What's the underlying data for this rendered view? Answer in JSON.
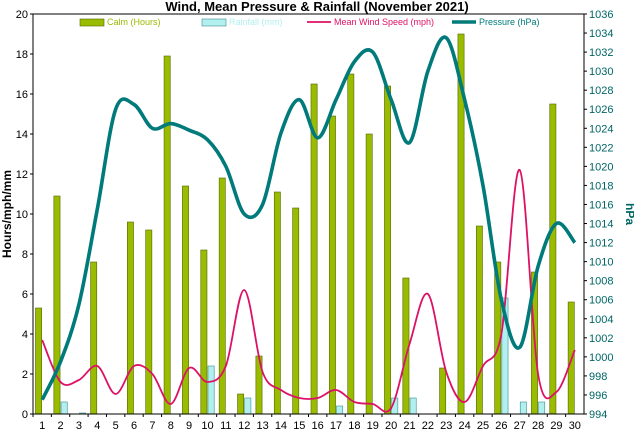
{
  "chart_data": {
    "type": "bar",
    "title": "Wind, Mean Pressure & Rainfall (November 2021)",
    "ylabel": "Hours/mph/mm",
    "y2label": "hPa",
    "ylim": [
      0,
      20
    ],
    "y2lim": [
      994,
      1036
    ],
    "yticks": [
      "0",
      "2",
      "4",
      "6",
      "8",
      "10",
      "12",
      "14",
      "16",
      "18",
      "20"
    ],
    "y2ticks": [
      "994",
      "996",
      "998",
      "1000",
      "1002",
      "1004",
      "1006",
      "1008",
      "1010",
      "1012",
      "1014",
      "1016",
      "1018",
      "1020",
      "1022",
      "1024",
      "1026",
      "1028",
      "1030",
      "1032",
      "1034",
      "1036"
    ],
    "categories": [
      "1",
      "2",
      "3",
      "4",
      "5",
      "6",
      "7",
      "8",
      "9",
      "10",
      "11",
      "12",
      "13",
      "14",
      "15",
      "16",
      "17",
      "18",
      "19",
      "20",
      "21",
      "22",
      "23",
      "24",
      "25",
      "26",
      "27",
      "28",
      "29",
      "30"
    ],
    "grid": false,
    "legend_position": "top",
    "series": [
      {
        "name": "Calm (Hours)",
        "type": "bar",
        "axis": "left",
        "color": "#99bb00",
        "values": [
          5.3,
          10.9,
          0,
          7.6,
          0,
          9.6,
          9.2,
          17.9,
          11.4,
          8.2,
          11.8,
          1.0,
          2.9,
          11.1,
          10.3,
          16.5,
          14.9,
          17.0,
          14.0,
          16.4,
          6.8,
          0,
          2.3,
          19.0,
          9.4,
          7.6,
          0,
          7.1,
          15.5,
          5.6
        ]
      },
      {
        "name": "Rainfall (mm)",
        "type": "bar",
        "axis": "left",
        "color": "#b2f0f0",
        "values": [
          0,
          0.6,
          0.05,
          0,
          0,
          0,
          0,
          0,
          0,
          2.4,
          0,
          0.8,
          0,
          0,
          0,
          0,
          0.4,
          0,
          0,
          0.8,
          0.8,
          0,
          0,
          0,
          0,
          5.8,
          0.6,
          0.6,
          0,
          0
        ]
      },
      {
        "name": "Mean Wind Speed (mph)",
        "type": "line",
        "axis": "left",
        "color": "#dd1166",
        "values": [
          3.7,
          1.6,
          1.7,
          2.4,
          1.0,
          2.4,
          2.0,
          0.5,
          2.3,
          1.6,
          2.4,
          6.2,
          2.1,
          1.2,
          0.8,
          0.8,
          1.2,
          0.6,
          0.5,
          0.3,
          3.5,
          6.0,
          2.1,
          0.6,
          2.4,
          4.0,
          12.2,
          2.0,
          1.1,
          3.2
        ]
      },
      {
        "name": "Pressure (hPa)",
        "type": "line",
        "axis": "right",
        "color": "#007a7a",
        "values": [
          995.5,
          999.5,
          1005.5,
          1015.5,
          1026.0,
          1026.5,
          1024.0,
          1024.5,
          1023.8,
          1022.8,
          1020.0,
          1015.0,
          1016.0,
          1023.5,
          1027.0,
          1023.0,
          1027.0,
          1031.0,
          1032.0,
          1027.0,
          1022.5,
          1030.0,
          1033.5,
          1027.0,
          1018.0,
          1006.0,
          1001.0,
          1009.5,
          1014.0,
          1012.0
        ]
      }
    ]
  }
}
